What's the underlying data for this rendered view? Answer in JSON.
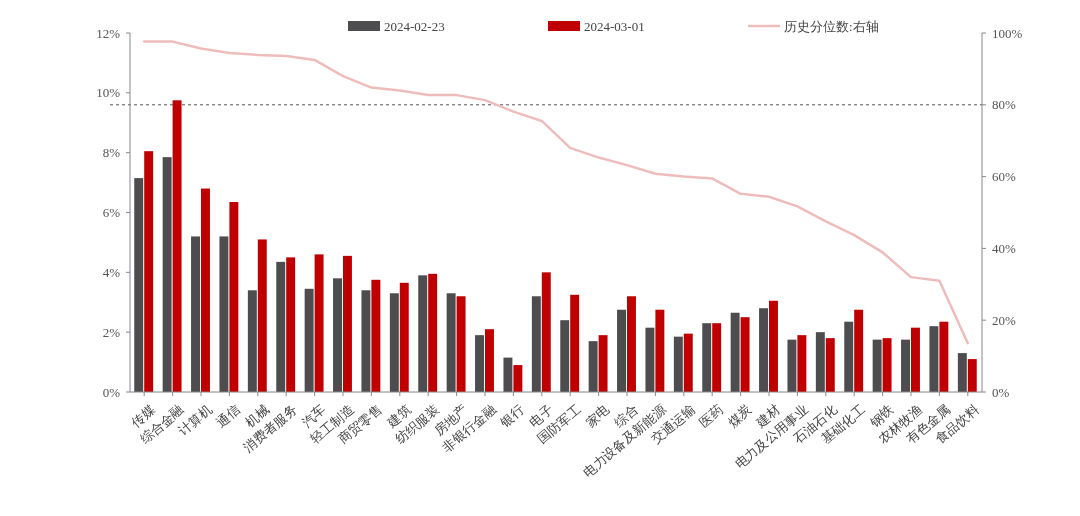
{
  "chart_data": {
    "type": "bar",
    "categories": [
      "传媒",
      "综合金融",
      "计算机",
      "通信",
      "机械",
      "消费者服务",
      "汽车",
      "轻工制造",
      "商贸零售",
      "建筑",
      "纺织服装",
      "房地产",
      "非银行金融",
      "银行",
      "电子",
      "国防军工",
      "家电",
      "综合",
      "电力设备及新能源",
      "交通运输",
      "医药",
      "煤炭",
      "建材",
      "电力及公用事业",
      "石油石化",
      "基础化工",
      "钢铁",
      "农林牧渔",
      "有色金属",
      "食品饮料"
    ],
    "series": [
      {
        "name": "2024-02-23",
        "color": "#4d4d4f",
        "values": [
          7.15,
          7.85,
          5.2,
          5.2,
          3.4,
          4.35,
          3.45,
          3.8,
          3.4,
          3.3,
          3.9,
          3.3,
          1.9,
          1.15,
          3.2,
          2.4,
          1.7,
          2.75,
          2.15,
          1.85,
          2.3,
          2.65,
          2.8,
          1.75,
          2.0,
          2.35,
          1.75,
          1.75,
          2.2,
          1.3
        ]
      },
      {
        "name": "2024-03-01",
        "color": "#c00000",
        "values": [
          8.05,
          9.75,
          6.8,
          6.35,
          5.1,
          4.5,
          4.6,
          4.55,
          3.75,
          3.65,
          3.95,
          3.2,
          2.1,
          0.9,
          4.0,
          3.25,
          1.9,
          3.2,
          2.75,
          1.95,
          2.3,
          2.5,
          3.05,
          1.9,
          1.8,
          2.75,
          1.8,
          2.15,
          2.35,
          1.1
        ]
      },
      {
        "name": "历史分位数:右轴",
        "type": "line",
        "axis": "y2",
        "color": "#efbcbc",
        "values": [
          97.6,
          97.6,
          95.7,
          94.4,
          93.9,
          93.6,
          92.5,
          88,
          84.8,
          84,
          82.7,
          82.7,
          81.3,
          78.1,
          75.5,
          68,
          65.3,
          63.2,
          60.8,
          60,
          59.5,
          55.2,
          54.4,
          51.7,
          47.5,
          43.7,
          38.9,
          32,
          31,
          13.6
        ]
      }
    ],
    "ylim": [
      0,
      12
    ],
    "yticks": [
      {
        "value": 0,
        "label": "0%"
      },
      {
        "value": 2,
        "label": "2%"
      },
      {
        "value": 4,
        "label": "4%"
      },
      {
        "value": 6,
        "label": "6%"
      },
      {
        "value": 8,
        "label": "8%"
      },
      {
        "value": 10,
        "label": "10%"
      },
      {
        "value": 12,
        "label": "12%"
      }
    ],
    "y2lim": [
      0,
      100
    ],
    "y2ticks": [
      {
        "value": 0,
        "label": "0%"
      },
      {
        "value": 20,
        "label": "20%"
      },
      {
        "value": 40,
        "label": "40%"
      },
      {
        "value": 60,
        "label": "60%"
      },
      {
        "value": 80,
        "label": "80%"
      },
      {
        "value": 100,
        "label": "100%"
      }
    ],
    "ref_lines": [
      {
        "axis": "y2",
        "value": 80,
        "color": "#555555",
        "line_style": "dashed"
      }
    ],
    "legend": "top",
    "grid": false
  }
}
